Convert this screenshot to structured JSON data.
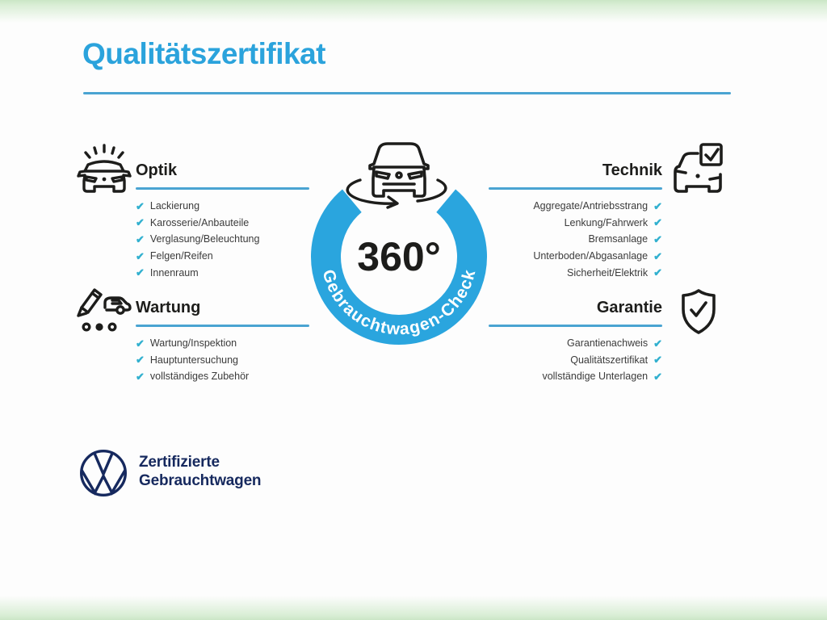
{
  "title": "Qualitätszertifikat",
  "badge": {
    "value": "360°",
    "label": "Gebrauchtwagen-Check"
  },
  "sections": {
    "optik": {
      "title": "Optik",
      "items": [
        "Lackierung",
        "Karosserie/Anbauteile",
        "Verglasung/Beleuchtung",
        "Felgen/Reifen",
        "Innenraum"
      ]
    },
    "technik": {
      "title": "Technik",
      "items": [
        "Aggregate/Antriebsstrang",
        "Lenkung/Fahrwerk",
        "Bremsanlage",
        "Unterboden/Abgasanlage",
        "Sicherheit/Elektrik"
      ]
    },
    "wartung": {
      "title": "Wartung",
      "items": [
        "Wartung/Inspektion",
        "Hauptuntersuchung",
        "vollständiges Zubehör"
      ]
    },
    "garantie": {
      "title": "Garantie",
      "items": [
        "Garantienachweis",
        "Qualitätszertifikat",
        "vollständige Unterlagen"
      ]
    }
  },
  "footer": {
    "brand_line1": "Zertifizierte",
    "brand_line2": "Gebrauchtwagen"
  },
  "icons": {
    "check": "✔",
    "optik": "car-shine-icon",
    "wartung": "pencil-car-icon",
    "technik": "car-checkbox-icon",
    "garantie": "shield-check-icon",
    "badge_car": "car-rotation-icon",
    "brand": "vw-logo"
  },
  "colors": {
    "accent_blue": "#2aa5de",
    "line_blue": "#4aa4d2",
    "check_teal": "#31b0cf",
    "text_dark": "#1d1d1b",
    "vw_navy": "#16295e",
    "edge_green": "#cbe6c6"
  }
}
